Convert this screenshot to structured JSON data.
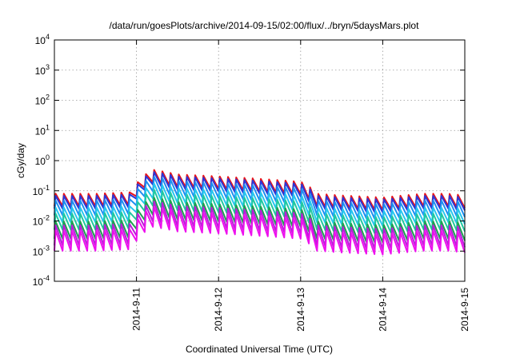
{
  "chart_data": {
    "type": "line",
    "title": "/data/run/goesPlots/archive/2014-09-15/02:00/flux/../bryn/5daysMars.plot",
    "xlabel": "Coordinated Universal Time (UTC)",
    "ylabel": "cGy/day",
    "yscale": "log",
    "ylim": [
      0.0001,
      10000
    ],
    "xlim": [
      "2014-09-10 02:00",
      "2014-09-15 02:00"
    ],
    "y_ticks": [
      {
        "value": 0.0001,
        "base": "10",
        "exp": "-4"
      },
      {
        "value": 0.001,
        "base": "10",
        "exp": "-3"
      },
      {
        "value": 0.01,
        "base": "10",
        "exp": "-2"
      },
      {
        "value": 0.1,
        "base": "10",
        "exp": "-1"
      },
      {
        "value": 1,
        "base": "10",
        "exp": "0"
      },
      {
        "value": 10,
        "base": "10",
        "exp": "1"
      },
      {
        "value": 100,
        "base": "10",
        "exp": "2"
      },
      {
        "value": 1000,
        "base": "10",
        "exp": "3"
      },
      {
        "value": 10000,
        "base": "10",
        "exp": "4"
      }
    ],
    "x_ticks": [
      {
        "label": "2014-9-11",
        "day": 1
      },
      {
        "label": "2014-9-12",
        "day": 2
      },
      {
        "label": "2014-9-13",
        "day": 3
      },
      {
        "label": "2014-9-14",
        "day": 4
      },
      {
        "label": "2014-9-15",
        "day": 5
      }
    ],
    "grid": true,
    "legend": "none",
    "cycles_per_day": 10,
    "envelope": {
      "day": [
        0.0,
        0.5,
        0.95,
        1.05,
        1.2,
        1.5,
        2.0,
        2.5,
        3.0,
        3.2,
        3.5,
        4.0,
        4.5,
        4.8,
        5.0,
        5.1
      ],
      "level": [
        0.08,
        0.08,
        0.09,
        0.25,
        0.5,
        0.35,
        0.3,
        0.25,
        0.2,
        0.08,
        0.07,
        0.06,
        0.08,
        0.08,
        0.07,
        0.06
      ]
    },
    "series": [
      {
        "color": "#e8141b",
        "peak": 1.0,
        "trough": 0.12
      },
      {
        "color": "#2a36d8",
        "peak": 0.85,
        "trough": 0.1
      },
      {
        "color": "#1e8ff0",
        "peak": 0.6,
        "trough": 0.06
      },
      {
        "color": "#26c6ee",
        "peak": 0.35,
        "trough": 0.035
      },
      {
        "color": "#20c8a0",
        "peak": 0.22,
        "trough": 0.02
      },
      {
        "color": "#1ea050",
        "peak": 0.12,
        "trough": 0.01
      },
      {
        "color": "#b81fd8",
        "peak": 0.09,
        "trough": 0.006
      },
      {
        "color": "#ee10ee",
        "peak": 0.06,
        "trough": 0.004
      }
    ]
  }
}
